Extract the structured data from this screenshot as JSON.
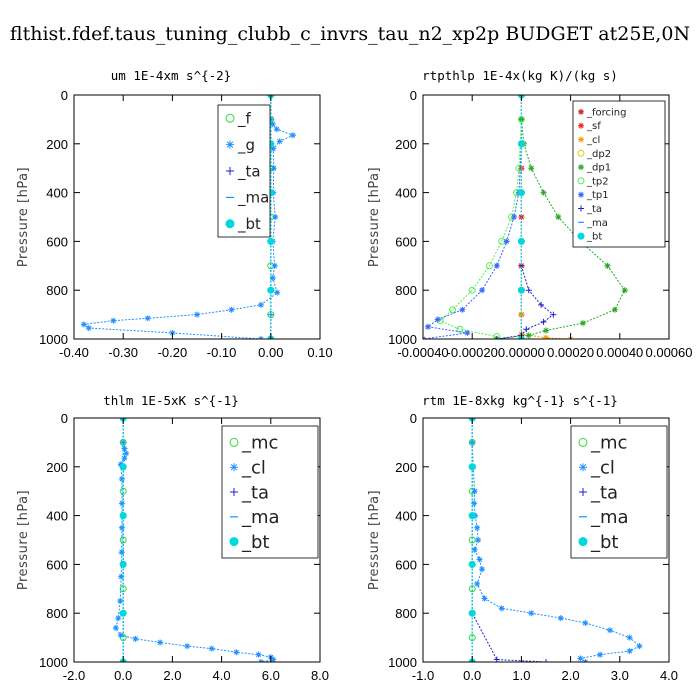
{
  "figure": {
    "title": "flthist.fdef.taus_tuning_clubb_c_invrs_tau_n2_xp2p  BUDGET at25E,0N"
  },
  "chart_data": [
    {
      "type": "line",
      "title": "um   1E-4xm s^{-2}",
      "ylabel": "Pressure [hPa]",
      "xlim": [
        -0.4,
        0.1
      ],
      "ylim": [
        1000,
        0
      ],
      "xticks": [
        -0.4,
        -0.3,
        -0.2,
        -0.1,
        0.0,
        0.1
      ],
      "xtick_labels": [
        "-0.40",
        "-0.30",
        "-0.20",
        "-0.10",
        "0.00",
        "0.10"
      ],
      "yticks": [
        0,
        200,
        400,
        600,
        800,
        1000
      ],
      "ytick_labels": [
        "0",
        "200",
        "400",
        "600",
        "800",
        "1000"
      ],
      "legend_position": "top-right",
      "series": [
        {
          "name": "_f",
          "color": "#33dd33",
          "marker": "circle",
          "x": [
            0,
            0,
            0,
            0,
            0,
            0,
            0,
            0,
            0,
            0,
            0
          ],
          "y": [
            0,
            100,
            200,
            300,
            400,
            500,
            600,
            700,
            800,
            900,
            1000
          ]
        },
        {
          "name": "_g",
          "color": "#1e90ff",
          "marker": "star",
          "x": [
            0,
            0.004,
            0.012,
            0.045,
            0.018,
            0.005,
            0.006,
            0.005,
            0.009,
            0.004,
            0.008,
            0.004,
            0.013,
            -0.02,
            -0.08,
            -0.15,
            -0.25,
            -0.32,
            -0.38,
            -0.37,
            -0.2,
            -0.02
          ],
          "y": [
            100,
            120,
            140,
            165,
            190,
            220,
            300,
            400,
            500,
            600,
            700,
            750,
            810,
            860,
            880,
            900,
            915,
            925,
            940,
            955,
            975,
            1000
          ]
        },
        {
          "name": "_ta",
          "color": "#2222cc",
          "marker": "plus",
          "x": [
            0,
            0,
            0,
            0,
            0,
            0,
            0
          ],
          "y": [
            0,
            200,
            400,
            600,
            800,
            900,
            1000
          ]
        },
        {
          "name": "_ma",
          "color": "#1e90ff",
          "marker": "dash",
          "x": [
            0,
            0,
            0,
            0,
            0,
            0,
            0
          ],
          "y": [
            0,
            200,
            400,
            600,
            800,
            900,
            1000
          ]
        },
        {
          "name": "_bt",
          "color": "#00d8e0",
          "marker": "filled-circle",
          "x": [
            0,
            0,
            0,
            0,
            0,
            0
          ],
          "y": [
            0,
            200,
            400,
            600,
            800,
            1000
          ]
        }
      ]
    },
    {
      "type": "line",
      "title": "rtpthlp   1E-4x(kg K)/(kg s)",
      "ylabel": "Pressure [hPa]",
      "xlim": [
        -0.0004,
        0.0006
      ],
      "ylim": [
        1000,
        0
      ],
      "xticks": [
        -0.0004,
        -0.0002,
        0.0,
        0.0002,
        0.0004,
        0.0006
      ],
      "xtick_labels": [
        "-0.00040",
        "-0.00020",
        "0.00000",
        "0.00020",
        "0.00040",
        "0.00060"
      ],
      "yticks": [
        0,
        200,
        400,
        600,
        800,
        1000
      ],
      "ytick_labels": [
        "0",
        "200",
        "400",
        "600",
        "800",
        "1000"
      ],
      "legend_position": "top-right",
      "series": [
        {
          "name": "_forcing",
          "color": "#cc2222",
          "marker": "star",
          "x": [
            0,
            0,
            0,
            0,
            0,
            0,
            0,
            0,
            0,
            0,
            0
          ],
          "y": [
            0,
            100,
            200,
            300,
            400,
            500,
            600,
            700,
            800,
            900,
            1000
          ]
        },
        {
          "name": "_sf",
          "color": "#ee2222",
          "marker": "star",
          "x": [
            0,
            0,
            0,
            0,
            0,
            0,
            0,
            0,
            0,
            0,
            0
          ],
          "y": [
            0,
            100,
            200,
            300,
            400,
            500,
            600,
            700,
            800,
            900,
            1000
          ]
        },
        {
          "name": "_cl",
          "color": "#ff9900",
          "marker": "star",
          "x": [
            0,
            0,
            0,
            0,
            0,
            0.0001,
            0.0002
          ],
          "y": [
            0,
            400,
            800,
            900,
            980,
            995,
            1000
          ]
        },
        {
          "name": "_dp2",
          "color": "#ddcc00",
          "marker": "circle",
          "x": [
            0,
            0,
            0,
            0,
            0,
            0
          ],
          "y": [
            0,
            200,
            400,
            600,
            800,
            1000
          ]
        },
        {
          "name": "_dp1",
          "color": "#22aa22",
          "marker": "star",
          "x": [
            0,
            1e-05,
            4e-05,
            9e-05,
            0.00015,
            0.00024,
            0.00035,
            0.00042,
            0.00038,
            0.00025,
            0.0001,
            3e-05,
            -0.0001
          ],
          "y": [
            100,
            200,
            300,
            400,
            500,
            600,
            700,
            800,
            880,
            935,
            965,
            985,
            1000
          ]
        },
        {
          "name": "_tp2",
          "color": "#55ee55",
          "marker": "circle",
          "x": [
            0,
            -1e-05,
            -2e-05,
            -4e-05,
            -8e-05,
            -0.00013,
            -0.0002,
            -0.00028,
            -0.00033,
            -0.00025,
            -0.0001
          ],
          "y": [
            100,
            300,
            400,
            500,
            600,
            700,
            800,
            880,
            925,
            960,
            990
          ]
        },
        {
          "name": "_tp1",
          "color": "#3366ff",
          "marker": "star",
          "x": [
            0,
            -1e-05,
            -3e-05,
            -6e-05,
            -0.0001,
            -0.00016,
            -0.00024,
            -0.00034,
            -0.00038,
            -0.00022,
            -0.0004
          ],
          "y": [
            200,
            400,
            500,
            600,
            700,
            800,
            880,
            920,
            950,
            975,
            1000
          ]
        },
        {
          "name": "_ta",
          "color": "#2222cc",
          "marker": "plus",
          "x": [
            0,
            3e-05,
            8e-05,
            0.00013,
            9e-05,
            2e-05,
            0,
            -0.0001
          ],
          "y": [
            700,
            800,
            860,
            900,
            930,
            960,
            985,
            1000
          ]
        },
        {
          "name": "_ma",
          "color": "#1e90ff",
          "marker": "dash",
          "x": [
            0,
            0,
            0,
            0,
            0,
            0
          ],
          "y": [
            0,
            200,
            400,
            600,
            800,
            1000
          ]
        },
        {
          "name": "_bt",
          "color": "#00d8e0",
          "marker": "filled-circle",
          "x": [
            0,
            0,
            0,
            0,
            0,
            0
          ],
          "y": [
            0,
            200,
            400,
            600,
            800,
            1000
          ]
        }
      ]
    },
    {
      "type": "line",
      "title": "thlm   1E-5xK s^{-1}",
      "ylabel": "Pressure [hPa]",
      "xlim": [
        -2.0,
        8.0
      ],
      "ylim": [
        1000,
        0
      ],
      "xticks": [
        -2.0,
        0.0,
        2.0,
        4.0,
        6.0,
        8.0
      ],
      "xtick_labels": [
        "-2.0",
        "0.0",
        "2.0",
        "4.0",
        "6.0",
        "8.0"
      ],
      "yticks": [
        0,
        200,
        400,
        600,
        800,
        1000
      ],
      "ytick_labels": [
        "0",
        "200",
        "400",
        "600",
        "800",
        "1000"
      ],
      "legend_position": "top-right",
      "series": [
        {
          "name": "_mc",
          "color": "#33dd33",
          "marker": "circle",
          "x": [
            0,
            0,
            0,
            0,
            0,
            0,
            0,
            0,
            0,
            0,
            0
          ],
          "y": [
            0,
            100,
            200,
            300,
            400,
            500,
            600,
            700,
            800,
            900,
            1000
          ]
        },
        {
          "name": "_cl",
          "color": "#1e90ff",
          "marker": "star",
          "x": [
            0,
            0.05,
            0.12,
            0.05,
            -0.1,
            -0.05,
            -0.05,
            -0.05,
            -0.06,
            -0.08,
            -0.12,
            -0.2,
            -0.3,
            -0.1,
            0.5,
            1.5,
            2.6,
            3.6,
            4.6,
            5.5,
            6.0,
            6.1,
            5.6
          ],
          "y": [
            100,
            125,
            145,
            165,
            190,
            250,
            350,
            450,
            550,
            650,
            750,
            820,
            860,
            890,
            905,
            920,
            935,
            945,
            960,
            970,
            980,
            990,
            1000
          ]
        },
        {
          "name": "_ta",
          "color": "#2222cc",
          "marker": "plus",
          "x": [
            0,
            0,
            0,
            0,
            0,
            0
          ],
          "y": [
            0,
            200,
            400,
            600,
            800,
            1000
          ]
        },
        {
          "name": "_ma",
          "color": "#1e90ff",
          "marker": "dash",
          "x": [
            0,
            0,
            0,
            0,
            0,
            0
          ],
          "y": [
            0,
            200,
            400,
            600,
            800,
            1000
          ]
        },
        {
          "name": "_bt",
          "color": "#00d8e0",
          "marker": "filled-circle",
          "x": [
            0,
            0,
            0,
            0,
            0,
            0
          ],
          "y": [
            0,
            200,
            400,
            600,
            800,
            1000
          ]
        }
      ]
    },
    {
      "type": "line",
      "title": "rtm   1E-8xkg kg^{-1} s^{-1}",
      "ylabel": "Pressure [hPa]",
      "xlim": [
        -1.0,
        4.0
      ],
      "ylim": [
        1000,
        0
      ],
      "xticks": [
        -1.0,
        0.0,
        1.0,
        2.0,
        3.0,
        4.0
      ],
      "xtick_labels": [
        "-1.0",
        "0.0",
        "1.0",
        "2.0",
        "3.0",
        "4.0"
      ],
      "yticks": [
        0,
        200,
        400,
        600,
        800,
        1000
      ],
      "ytick_labels": [
        "0",
        "200",
        "400",
        "600",
        "800",
        "1000"
      ],
      "legend_position": "top-right",
      "series": [
        {
          "name": "_mc",
          "color": "#33dd33",
          "marker": "circle",
          "x": [
            0,
            0,
            0,
            0,
            0,
            0,
            0,
            0,
            0,
            0,
            0
          ],
          "y": [
            0,
            100,
            200,
            300,
            400,
            500,
            600,
            700,
            800,
            900,
            1000
          ]
        },
        {
          "name": "_cl",
          "color": "#1e90ff",
          "marker": "star",
          "x": [
            0,
            0.02,
            0.05,
            0.04,
            0.06,
            0.1,
            0.12,
            0.05,
            0.15,
            0.2,
            0.1,
            0.25,
            0.6,
            1.2,
            1.8,
            2.3,
            2.8,
            3.2,
            3.4,
            3.2,
            2.6,
            2.2,
            2.3
          ],
          "y": [
            100,
            200,
            300,
            350,
            400,
            450,
            500,
            540,
            580,
            620,
            680,
            740,
            780,
            800,
            820,
            840,
            870,
            900,
            935,
            955,
            970,
            985,
            1000
          ]
        },
        {
          "name": "_ta",
          "color": "#2222cc",
          "marker": "plus",
          "x": [
            0,
            0,
            0,
            0,
            0,
            0.5,
            1.5
          ],
          "y": [
            0,
            200,
            400,
            600,
            800,
            990,
            1000
          ]
        },
        {
          "name": "_ma",
          "color": "#1e90ff",
          "marker": "dash",
          "x": [
            0,
            0,
            0,
            0,
            0,
            0
          ],
          "y": [
            0,
            200,
            400,
            600,
            800,
            1000
          ]
        },
        {
          "name": "_bt",
          "color": "#00d8e0",
          "marker": "filled-circle",
          "x": [
            0,
            0,
            0,
            0,
            0,
            0
          ],
          "y": [
            0,
            200,
            400,
            600,
            800,
            1000
          ]
        }
      ]
    }
  ]
}
